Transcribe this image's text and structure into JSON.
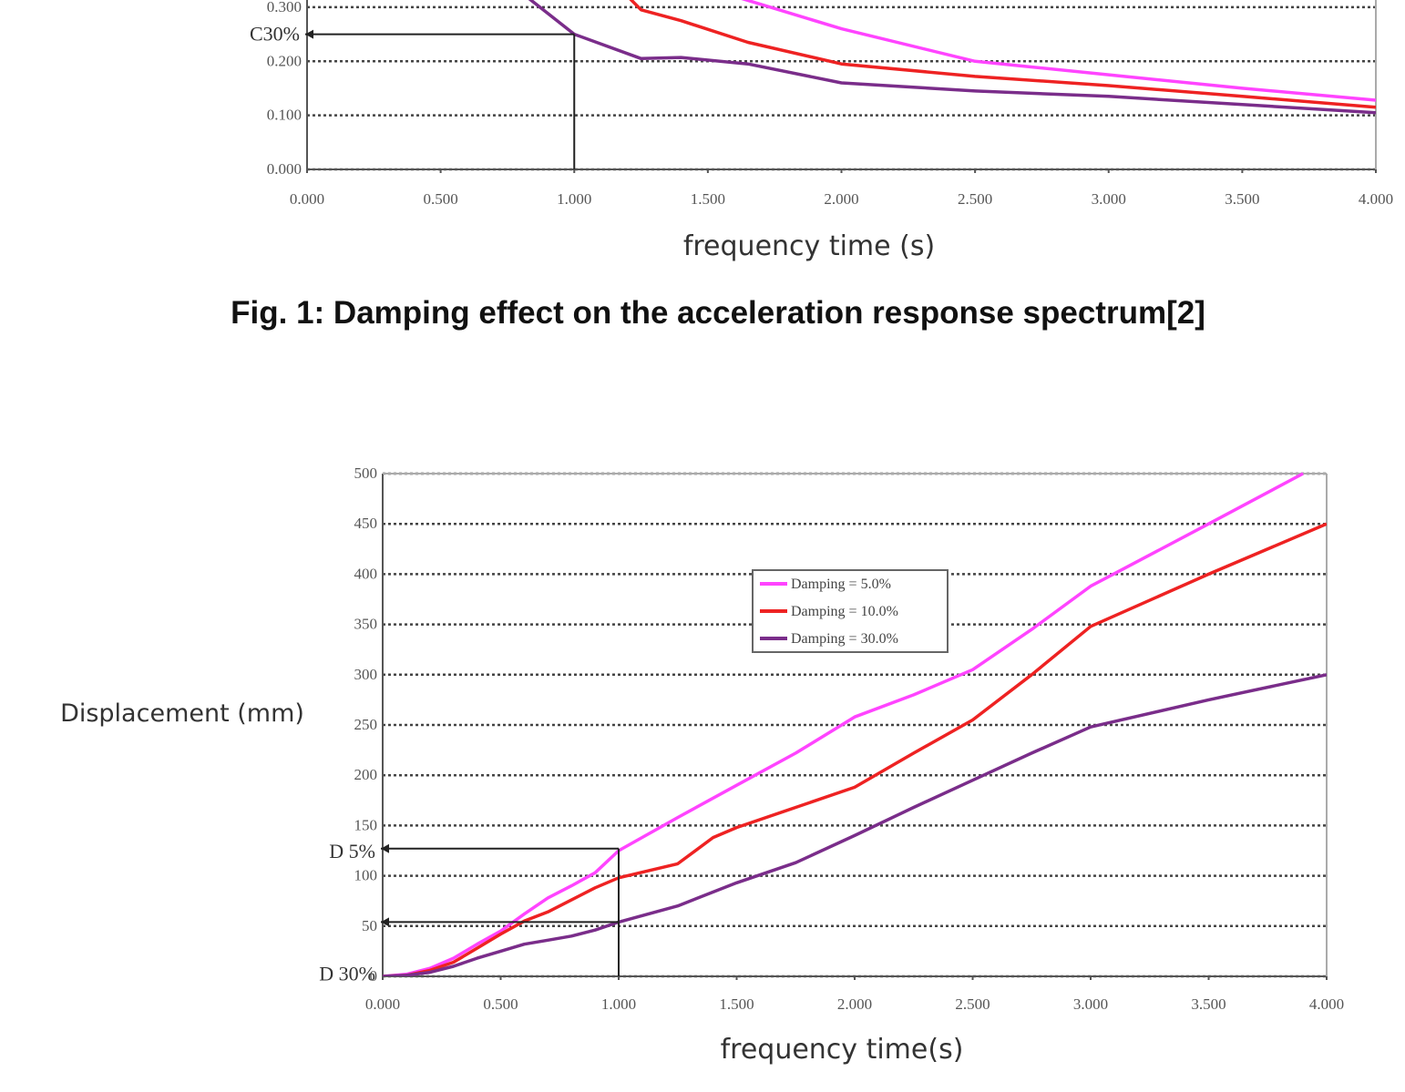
{
  "chart_data": [
    {
      "type": "line",
      "title": "",
      "xlabel": "frequency time (s)",
      "ylabel": "",
      "xlim": [
        0,
        4
      ],
      "ylim": [
        0,
        0.32
      ],
      "grid": true,
      "x_ticks": [
        "0.000",
        "0.500",
        "1.000",
        "1.500",
        "2.000",
        "2.500",
        "3.000",
        "3.500",
        "4.000"
      ],
      "y_ticks": [
        {
          "value": 0.0,
          "label": "0.000"
        },
        {
          "value": 0.1,
          "label": "0.100"
        },
        {
          "value": 0.2,
          "label": "0.200"
        },
        {
          "value": 0.3,
          "label": "0.300"
        }
      ],
      "annotations": [
        {
          "label": "C30%",
          "x": 1.0,
          "y": 0.25
        }
      ],
      "series": [
        {
          "color": "#ff44ff",
          "points": [
            [
              1.6,
              0.32
            ],
            [
              2.0,
              0.26
            ],
            [
              2.5,
              0.2
            ],
            [
              3.0,
              0.175
            ],
            [
              3.5,
              0.15
            ],
            [
              4.0,
              0.128
            ]
          ]
        },
        {
          "color": "#ee2222",
          "points": [
            [
              1.2,
              0.32
            ],
            [
              1.25,
              0.295
            ],
            [
              1.4,
              0.275
            ],
            [
              1.65,
              0.235
            ],
            [
              2.0,
              0.195
            ],
            [
              2.5,
              0.172
            ],
            [
              3.0,
              0.155
            ],
            [
              3.5,
              0.135
            ],
            [
              4.0,
              0.115
            ]
          ]
        },
        {
          "color": "#7a2d8a",
          "points": [
            [
              0.82,
              0.32
            ],
            [
              1.0,
              0.25
            ],
            [
              1.25,
              0.205
            ],
            [
              1.4,
              0.207
            ],
            [
              1.65,
              0.195
            ],
            [
              2.0,
              0.16
            ],
            [
              2.5,
              0.145
            ],
            [
              3.0,
              0.135
            ],
            [
              3.5,
              0.12
            ],
            [
              4.0,
              0.105
            ]
          ]
        }
      ]
    },
    {
      "type": "line",
      "title": "",
      "xlabel": "frequency time(s)",
      "ylabel": "Displacement (mm)",
      "xlim": [
        0,
        4
      ],
      "ylim": [
        0,
        500
      ],
      "grid": true,
      "x_ticks": [
        "0.000",
        "0.500",
        "1.000",
        "1.500",
        "2.000",
        "2.500",
        "3.000",
        "3.500",
        "4.000"
      ],
      "y_ticks": [
        {
          "value": 0,
          "label": "0"
        },
        {
          "value": 50,
          "label": "50"
        },
        {
          "value": 100,
          "label": "100"
        },
        {
          "value": 150,
          "label": "150"
        },
        {
          "value": 200,
          "label": "200"
        },
        {
          "value": 250,
          "label": "250"
        },
        {
          "value": 300,
          "label": "300"
        },
        {
          "value": 350,
          "label": "350"
        },
        {
          "value": 400,
          "label": "400"
        },
        {
          "value": 450,
          "label": "450"
        },
        {
          "value": 500,
          "label": "500"
        }
      ],
      "legend": {
        "position": "top-center",
        "entries": [
          "Damping = 5.0%",
          "Damping = 10.0%",
          "Damping = 30.0%"
        ]
      },
      "annotations": [
        {
          "label": "D 5%",
          "x": 1.0,
          "y": 127
        },
        {
          "label": "D 30%",
          "x": 1.0,
          "y": 54
        }
      ],
      "series": [
        {
          "name": "Damping = 5.0%",
          "color": "#ff44ff",
          "points": [
            [
              0,
              0
            ],
            [
              0.1,
              2
            ],
            [
              0.2,
              8
            ],
            [
              0.3,
              18
            ],
            [
              0.4,
              32
            ],
            [
              0.5,
              45
            ],
            [
              0.6,
              62
            ],
            [
              0.7,
              78
            ],
            [
              0.8,
              90
            ],
            [
              0.9,
              103
            ],
            [
              1.0,
              125
            ],
            [
              1.25,
              158
            ],
            [
              1.5,
              190
            ],
            [
              1.75,
              222
            ],
            [
              2.0,
              258
            ],
            [
              2.25,
              280
            ],
            [
              2.5,
              305
            ],
            [
              2.75,
              345
            ],
            [
              3.0,
              388
            ],
            [
              3.5,
              450
            ],
            [
              3.9,
              500
            ]
          ]
        },
        {
          "name": "Damping = 10.0%",
          "color": "#ee2222",
          "points": [
            [
              0,
              0
            ],
            [
              0.1,
              1
            ],
            [
              0.2,
              6
            ],
            [
              0.3,
              14
            ],
            [
              0.4,
              28
            ],
            [
              0.5,
              42
            ],
            [
              0.6,
              55
            ],
            [
              0.7,
              64
            ],
            [
              0.8,
              76
            ],
            [
              0.9,
              88
            ],
            [
              1.0,
              98
            ],
            [
              1.25,
              112
            ],
            [
              1.4,
              138
            ],
            [
              1.5,
              148
            ],
            [
              1.75,
              168
            ],
            [
              2.0,
              188
            ],
            [
              2.25,
              222
            ],
            [
              2.5,
              255
            ],
            [
              2.75,
              300
            ],
            [
              3.0,
              348
            ],
            [
              3.5,
              400
            ],
            [
              4.0,
              450
            ]
          ]
        },
        {
          "name": "Damping = 30.0%",
          "color": "#7a2d8a",
          "points": [
            [
              0,
              0
            ],
            [
              0.1,
              1
            ],
            [
              0.2,
              4
            ],
            [
              0.3,
              10
            ],
            [
              0.4,
              18
            ],
            [
              0.5,
              25
            ],
            [
              0.6,
              32
            ],
            [
              0.7,
              36
            ],
            [
              0.8,
              40
            ],
            [
              0.9,
              46
            ],
            [
              1.0,
              54
            ],
            [
              1.25,
              70
            ],
            [
              1.5,
              93
            ],
            [
              1.75,
              113
            ],
            [
              2.0,
              140
            ],
            [
              2.25,
              168
            ],
            [
              2.5,
              195
            ],
            [
              2.75,
              222
            ],
            [
              3.0,
              248
            ],
            [
              3.5,
              275
            ],
            [
              4.0,
              300
            ]
          ]
        }
      ]
    }
  ],
  "caption": "Fig. 1: Damping effect on the acceleration response spectrum[2]"
}
